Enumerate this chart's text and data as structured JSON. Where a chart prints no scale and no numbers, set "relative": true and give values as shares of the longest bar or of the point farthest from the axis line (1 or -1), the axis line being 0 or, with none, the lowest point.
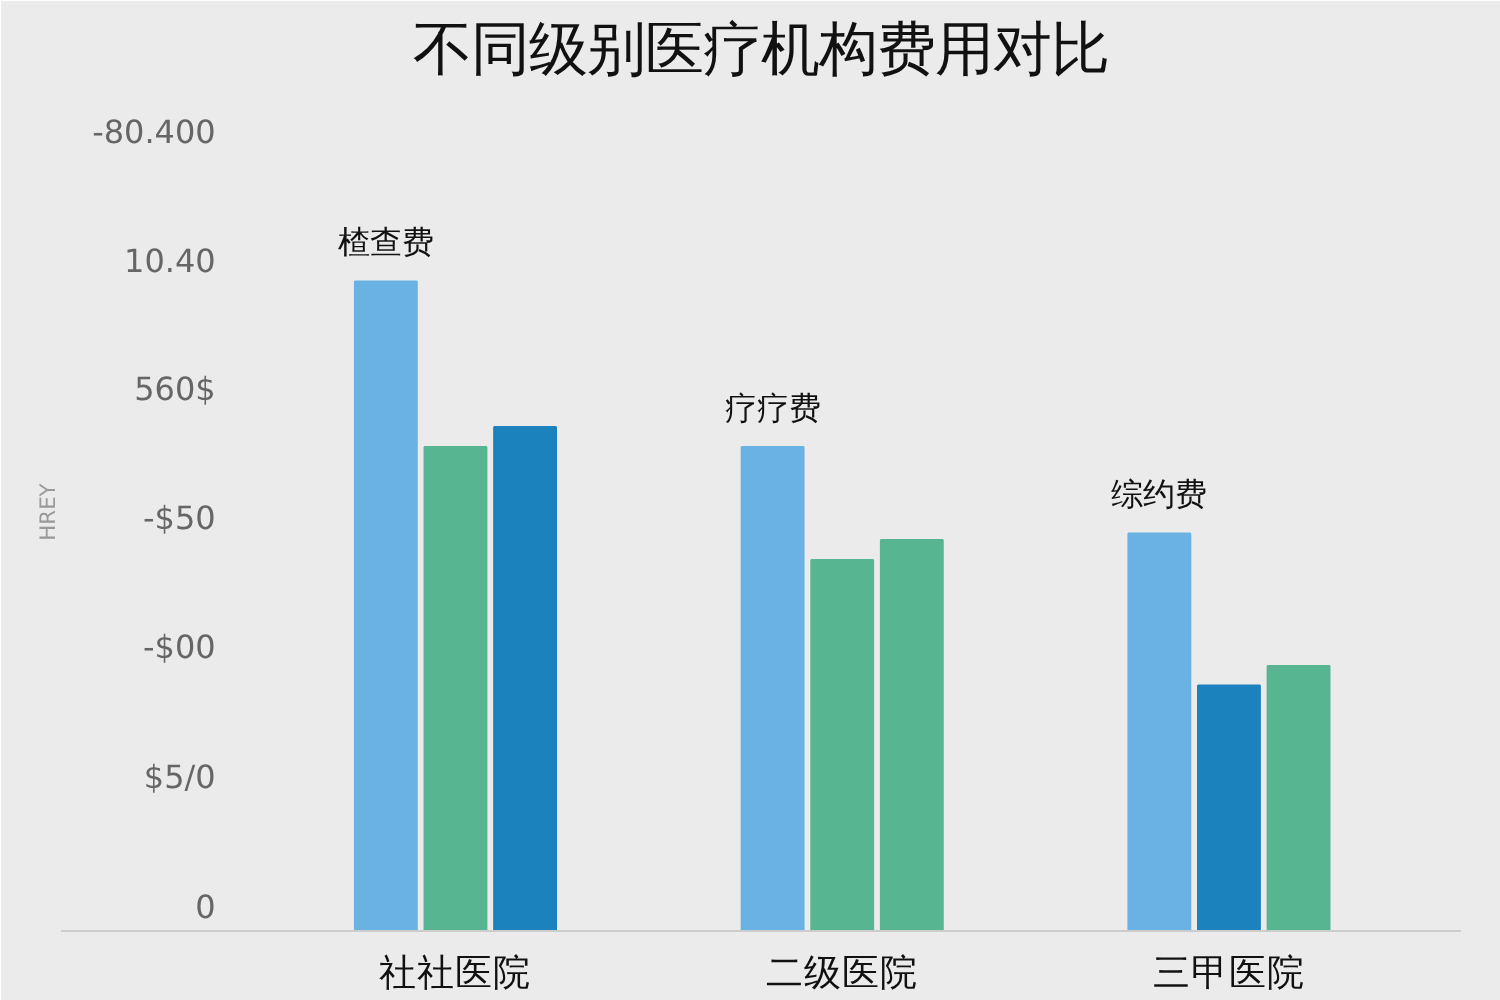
{
  "chart_data": {
    "type": "bar",
    "title": "不同级别医疗机构费用对比",
    "ylabel": "HREY",
    "relative": true,
    "categories": [
      "社社医院",
      "二级医院",
      "三甲医院"
    ],
    "series": [
      {
        "colors": [
          "#6ab2e4",
          "#6ab2e4",
          "#6ab2e4"
        ],
        "values": [
          1,
          0.745,
          0.612
        ]
      },
      {
        "colors": [
          "#58b592",
          "#58b592",
          "#1c82bd"
        ],
        "values": [
          0.745,
          0.571,
          0.378
        ]
      },
      {
        "colors": [
          "#1c82bd",
          "#58b592",
          "#58b592"
        ],
        "values": [
          0.776,
          0.602,
          0.408
        ]
      }
    ],
    "annotations": [
      "楂查费",
      "疗疗费",
      "综约费",
      "-80.400",
      "10.40",
      "560$",
      "-$50",
      "-$00",
      "$5/0",
      "0"
    ],
    "grid": false
  }
}
